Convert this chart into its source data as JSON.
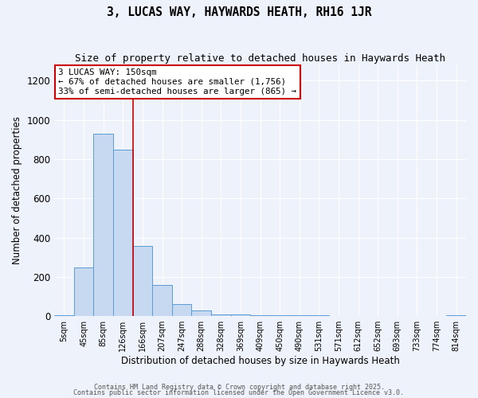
{
  "title": "3, LUCAS WAY, HAYWARDS HEATH, RH16 1JR",
  "subtitle": "Size of property relative to detached houses in Haywards Heath",
  "xlabel": "Distribution of detached houses by size in Haywards Heath",
  "ylabel": "Number of detached properties",
  "bar_color": "#c6d9f1",
  "bar_edge_color": "#5b9bd5",
  "background_color": "#eef2fb",
  "grid_color": "#ffffff",
  "categories": [
    "5sqm",
    "45sqm",
    "85sqm",
    "126sqm",
    "166sqm",
    "207sqm",
    "247sqm",
    "288sqm",
    "328sqm",
    "369sqm",
    "409sqm",
    "450sqm",
    "490sqm",
    "531sqm",
    "571sqm",
    "612sqm",
    "652sqm",
    "693sqm",
    "733sqm",
    "774sqm",
    "814sqm"
  ],
  "values": [
    5,
    248,
    928,
    848,
    358,
    158,
    63,
    28,
    10,
    8,
    6,
    5,
    3,
    3,
    2,
    2,
    2,
    1,
    0,
    0,
    5
  ],
  "ylim": [
    0,
    1280
  ],
  "yticks": [
    0,
    200,
    400,
    600,
    800,
    1000,
    1200
  ],
  "annotation_title": "3 LUCAS WAY: 150sqm",
  "annotation_line1": "← 67% of detached houses are smaller (1,756)",
  "annotation_line2": "33% of semi-detached houses are larger (865) →",
  "annotation_box_color": "#ffffff",
  "annotation_box_edge_color": "#cc0000",
  "red_line_color": "#cc0000",
  "footnote1": "Contains HM Land Registry data © Crown copyright and database right 2025.",
  "footnote2": "Contains public sector information licensed under the Open Government Licence v3.0."
}
